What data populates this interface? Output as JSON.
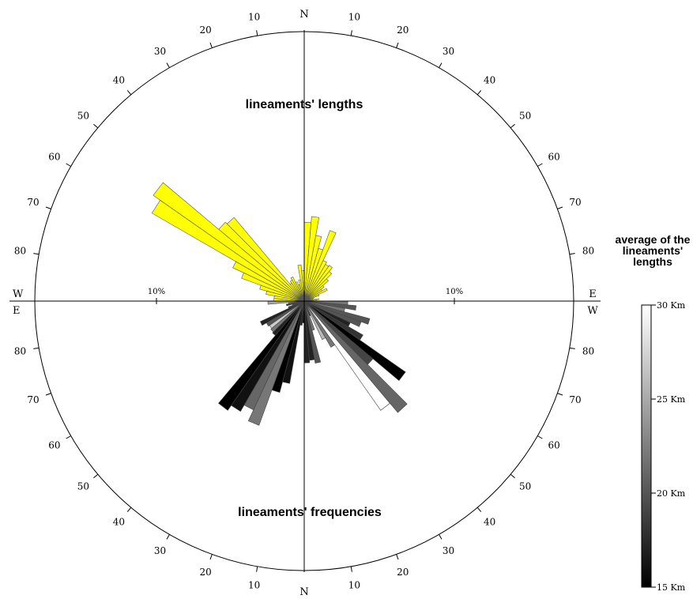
{
  "chart_data": {
    "type": "rose",
    "titles": {
      "upper": "lineaments' lengths",
      "lower": "lineaments' frequencies"
    },
    "directions": {
      "n_top": "N",
      "n_bottom": "N",
      "w_left": "W",
      "e_left": "E",
      "e_right": "E",
      "w_right": "W"
    },
    "angle_ticks": [
      "10",
      "20",
      "30",
      "40",
      "50",
      "60",
      "70",
      "80"
    ],
    "radial_scale": {
      "label_left": "10%",
      "label_right": "10%",
      "max_percent": 22.22
    },
    "lengths": {
      "color": "#ffff00",
      "bin_deg": 5,
      "bins": [
        {
          "from": 0,
          "to": 5,
          "value": 6.5
        },
        {
          "from": 5,
          "to": 10,
          "value": 7.0
        },
        {
          "from": 10,
          "to": 15,
          "value": 5.5
        },
        {
          "from": 15,
          "to": 20,
          "value": 4.5
        },
        {
          "from": 20,
          "to": 25,
          "value": 6.2
        },
        {
          "from": 25,
          "to": 30,
          "value": 3.7
        },
        {
          "from": 30,
          "to": 35,
          "value": 3.5
        },
        {
          "from": 35,
          "to": 40,
          "value": 3.6
        },
        {
          "from": 40,
          "to": 45,
          "value": 3.2
        },
        {
          "from": 45,
          "to": 50,
          "value": 2.6
        },
        {
          "from": 50,
          "to": 55,
          "value": 2.0
        },
        {
          "from": 55,
          "to": 60,
          "value": 1.7
        },
        {
          "from": 60,
          "to": 65,
          "value": 2.1
        },
        {
          "from": 65,
          "to": 70,
          "value": 1.3
        },
        {
          "from": 70,
          "to": 75,
          "value": 0.8
        },
        {
          "from": 75,
          "to": 80,
          "value": 0.7
        },
        {
          "from": 80,
          "to": 85,
          "value": 1.2
        },
        {
          "from": 85,
          "to": 90,
          "value": 1.0
        },
        {
          "from": -5,
          "to": 0,
          "value": 2.5
        },
        {
          "from": -10,
          "to": -5,
          "value": 3.0
        },
        {
          "from": -15,
          "to": -10,
          "value": 1.8
        },
        {
          "from": -20,
          "to": -15,
          "value": 1.4
        },
        {
          "from": -25,
          "to": -20,
          "value": 1.7
        },
        {
          "from": -30,
          "to": -25,
          "value": 2.2
        },
        {
          "from": -35,
          "to": -30,
          "value": 2.0
        },
        {
          "from": -40,
          "to": -35,
          "value": 1.8
        },
        {
          "from": -45,
          "to": -40,
          "value": 9.0
        },
        {
          "from": -50,
          "to": -45,
          "value": 9.2
        },
        {
          "from": -55,
          "to": -50,
          "value": 15.2
        },
        {
          "from": -60,
          "to": -55,
          "value": 14.5
        },
        {
          "from": -65,
          "to": -60,
          "value": 6.5
        },
        {
          "from": -70,
          "to": -65,
          "value": 5.5
        },
        {
          "from": -75,
          "to": -70,
          "value": 3.8
        },
        {
          "from": -80,
          "to": -75,
          "value": 3.2
        },
        {
          "from": -85,
          "to": -80,
          "value": 2.5
        },
        {
          "from": -90,
          "to": -85,
          "value": 2.5
        }
      ]
    },
    "frequencies": {
      "bin_deg": 5,
      "bins": [
        {
          "from": 0,
          "to": 5,
          "value": 5.1,
          "avg_km": 17
        },
        {
          "from": 5,
          "to": 10,
          "value": 4.9,
          "avg_km": 17
        },
        {
          "from": 10,
          "to": 15,
          "value": 5.2,
          "avg_km": 20
        },
        {
          "from": 15,
          "to": 20,
          "value": 2.5,
          "avg_km": 22
        },
        {
          "from": 20,
          "to": 25,
          "value": 1.3,
          "avg_km": 18
        },
        {
          "from": 25,
          "to": 30,
          "value": 3.5,
          "avg_km": 26
        },
        {
          "from": 30,
          "to": 35,
          "value": 4.4,
          "avg_km": 22
        },
        {
          "from": 35,
          "to": 40,
          "value": 11.0,
          "avg_km": 30
        },
        {
          "from": 40,
          "to": 45,
          "value": 12.0,
          "avg_km": 21
        },
        {
          "from": 45,
          "to": 50,
          "value": 7.4,
          "avg_km": 19
        },
        {
          "from": 50,
          "to": 55,
          "value": 10.2,
          "avg_km": 15
        },
        {
          "from": 55,
          "to": 60,
          "value": 5.6,
          "avg_km": 18
        },
        {
          "from": 60,
          "to": 65,
          "value": 4.2,
          "avg_km": 17
        },
        {
          "from": 65,
          "to": 70,
          "value": 5.0,
          "avg_km": 20
        },
        {
          "from": 70,
          "to": 75,
          "value": 5.6,
          "avg_km": 20
        },
        {
          "from": 75,
          "to": 80,
          "value": 3.4,
          "avg_km": 22
        },
        {
          "from": 80,
          "to": 85,
          "value": 4.3,
          "avg_km": 20
        },
        {
          "from": 85,
          "to": 90,
          "value": 3.6,
          "avg_km": 22
        },
        {
          "from": -5,
          "to": 0,
          "value": 1.8,
          "avg_km": 16
        },
        {
          "from": -10,
          "to": -5,
          "value": 2.0,
          "avg_km": 17
        },
        {
          "from": -15,
          "to": -10,
          "value": 6.9,
          "avg_km": 16
        },
        {
          "from": -20,
          "to": -15,
          "value": 7.8,
          "avg_km": 15
        },
        {
          "from": -25,
          "to": -20,
          "value": 10.9,
          "avg_km": 22
        },
        {
          "from": -30,
          "to": -25,
          "value": 9.9,
          "avg_km": 21
        },
        {
          "from": -35,
          "to": -30,
          "value": 10.5,
          "avg_km": 16
        },
        {
          "from": -40,
          "to": -35,
          "value": 11.0,
          "avg_km": 15
        },
        {
          "from": -45,
          "to": -40,
          "value": 3.7,
          "avg_km": 17
        },
        {
          "from": -50,
          "to": -45,
          "value": 3.6,
          "avg_km": 22
        },
        {
          "from": -55,
          "to": -50,
          "value": 3.5,
          "avg_km": 27
        },
        {
          "from": -60,
          "to": -55,
          "value": 3.6,
          "avg_km": 20
        },
        {
          "from": -65,
          "to": -60,
          "value": 4.0,
          "avg_km": 17
        },
        {
          "from": -70,
          "to": -65,
          "value": 1.4,
          "avg_km": 19
        },
        {
          "from": -75,
          "to": -70,
          "value": 1.0,
          "avg_km": 20
        },
        {
          "from": -80,
          "to": -75,
          "value": 1.5,
          "avg_km": 18
        },
        {
          "from": -85,
          "to": -80,
          "value": 1.3,
          "avg_km": 22
        },
        {
          "from": -90,
          "to": -85,
          "value": 3.0,
          "avg_km": 25
        }
      ]
    },
    "colorbar": {
      "title": "average of the lineaments' lengths",
      "min_km": 15,
      "max_km": 30,
      "min_color": "#000000",
      "max_color": "#ffffff",
      "ticks": [
        "30 Km",
        "25 Km",
        "20 Km",
        "15 Km"
      ],
      "tick_values": [
        30,
        25,
        20,
        15
      ]
    }
  }
}
